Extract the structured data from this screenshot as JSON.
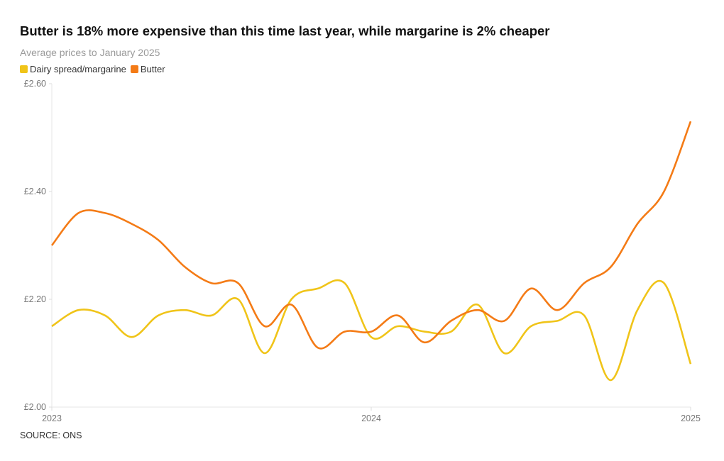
{
  "chart_data": {
    "type": "line",
    "title": "Butter is 18% more expensive than this time last year, while margarine is 2% cheaper",
    "subtitle": "Average prices to January 2025",
    "xlabel": "",
    "ylabel": "",
    "ylim": [
      2.0,
      2.6
    ],
    "y_ticks": [
      "£2.00",
      "£2.20",
      "£2.40",
      "£2.60"
    ],
    "y_tick_values": [
      2.0,
      2.2,
      2.4,
      2.6
    ],
    "x_ticks": [
      "2023",
      "2024",
      "2025"
    ],
    "x_tick_values": [
      0,
      12,
      24
    ],
    "x": [
      "Jan 2023",
      "Feb 2023",
      "Mar 2023",
      "Apr 2023",
      "May 2023",
      "Jun 2023",
      "Jul 2023",
      "Aug 2023",
      "Sep 2023",
      "Oct 2023",
      "Nov 2023",
      "Dec 2023",
      "Jan 2024",
      "Feb 2024",
      "Mar 2024",
      "Apr 2024",
      "May 2024",
      "Jun 2024",
      "Jul 2024",
      "Aug 2024",
      "Sep 2024",
      "Oct 2024",
      "Nov 2024",
      "Dec 2024",
      "Jan 2025"
    ],
    "legend_position": "top-left",
    "grid": false,
    "series": [
      {
        "name": "Dairy spread/margarine",
        "color": "#f0c419",
        "values": [
          2.15,
          2.18,
          2.17,
          2.13,
          2.17,
          2.18,
          2.17,
          2.2,
          2.1,
          2.2,
          2.22,
          2.23,
          2.13,
          2.15,
          2.14,
          2.14,
          2.19,
          2.1,
          2.15,
          2.16,
          2.17,
          2.05,
          2.18,
          2.23,
          2.08
        ]
      },
      {
        "name": "Butter",
        "color": "#f47b16",
        "values": [
          2.3,
          2.36,
          2.36,
          2.34,
          2.31,
          2.26,
          2.23,
          2.23,
          2.15,
          2.19,
          2.11,
          2.14,
          2.14,
          2.17,
          2.12,
          2.16,
          2.18,
          2.16,
          2.22,
          2.18,
          2.23,
          2.26,
          2.34,
          2.4,
          2.53
        ]
      }
    ],
    "source": "SOURCE: ONS"
  }
}
